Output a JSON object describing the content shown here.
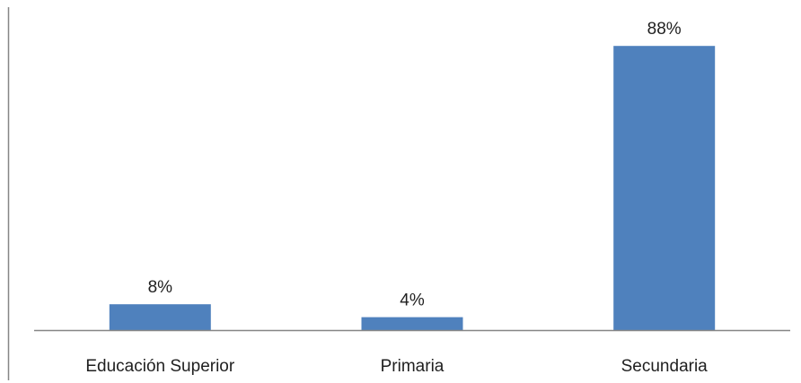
{
  "chart_data": {
    "type": "bar",
    "title": "",
    "xlabel": "",
    "ylabel": "",
    "categories": [
      "Educación Superior",
      "Primaria",
      "Secundaria"
    ],
    "values": [
      8,
      4,
      88
    ],
    "data_labels": [
      "8%",
      "4%",
      "88%"
    ],
    "ylim": [
      0,
      100
    ],
    "unit": "%",
    "grid": false,
    "legend": "none",
    "bar_color": "#4f81bd",
    "axis_color": "#868686"
  }
}
